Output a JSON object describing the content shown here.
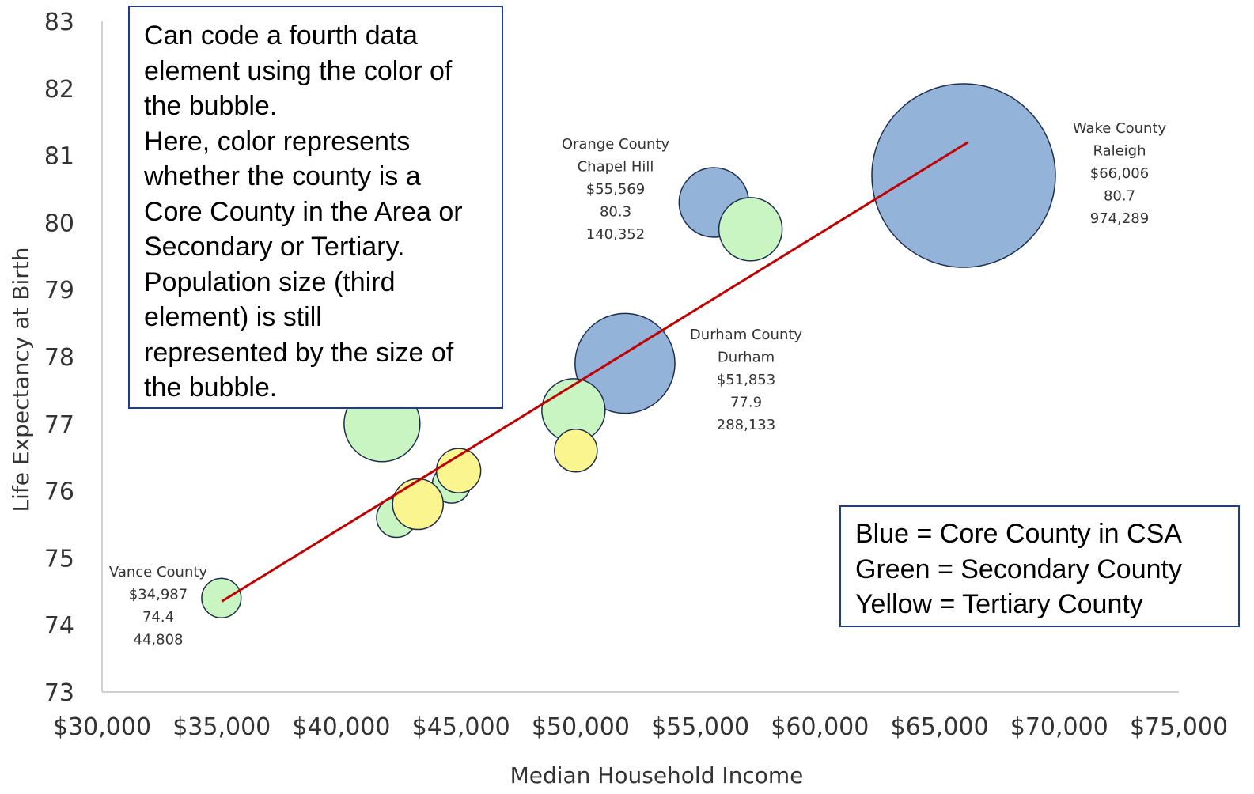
{
  "chart_data": {
    "type": "scatter",
    "subtype": "bubble",
    "xlabel": "Median Household Income",
    "ylabel": "Life Expectancy at Birth",
    "xlim": [
      30000,
      75000
    ],
    "ylim": [
      73,
      83
    ],
    "x_ticks": [
      "$30,000",
      "$35,000",
      "$40,000",
      "$45,000",
      "$50,000",
      "$55,000",
      "$60,000",
      "$65,000",
      "$70,000",
      "$75,000"
    ],
    "y_ticks": [
      "73",
      "74",
      "75",
      "76",
      "77",
      "78",
      "79",
      "80",
      "81",
      "82",
      "83"
    ],
    "grid": false,
    "colors": {
      "core": "#94b3d9",
      "secondary": "#c9f5c3",
      "tertiary": "#fbf58f",
      "trendline": "#c00000",
      "bubble_stroke": "#1f2d4d"
    },
    "points": [
      {
        "x": 66006,
        "y": 80.7,
        "population": 974289,
        "category": "core",
        "label": [
          "Wake County",
          "Raleigh",
          "$66,006",
          "80.7",
          "974,289"
        ]
      },
      {
        "x": 55569,
        "y": 80.3,
        "population": 140352,
        "category": "core",
        "label": [
          "Orange County",
          "Chapel Hill",
          "$55,569",
          "80.3",
          "140,352"
        ]
      },
      {
        "x": 51853,
        "y": 77.9,
        "population": 288133,
        "category": "core",
        "label": [
          "Durham County",
          "Durham",
          "$51,853",
          "77.9",
          "288,133"
        ]
      },
      {
        "x": 34987,
        "y": 74.4,
        "population": 44808,
        "category": "secondary",
        "label": [
          "Vance County",
          "$34,987",
          "74.4",
          "44,808"
        ]
      },
      {
        "x": 57100,
        "y": 79.9,
        "category": "secondary"
      },
      {
        "x": 49700,
        "y": 77.2,
        "category": "secondary"
      },
      {
        "x": 41700,
        "y": 77.0,
        "category": "secondary"
      },
      {
        "x": 44600,
        "y": 76.1,
        "category": "secondary"
      },
      {
        "x": 42300,
        "y": 75.6,
        "category": "secondary"
      },
      {
        "x": 43200,
        "y": 75.8,
        "category": "tertiary"
      },
      {
        "x": 44900,
        "y": 76.3,
        "category": "tertiary"
      },
      {
        "x": 49800,
        "y": 76.6,
        "category": "tertiary"
      }
    ],
    "trendline": {
      "x": [
        35000,
        66200
      ],
      "y": [
        74.35,
        81.2
      ]
    }
  },
  "note": {
    "lines": [
      "Can code a fourth data",
      "element using the color of",
      "the bubble.",
      "Here, color represents",
      "whether the county is a",
      "Core County in the Area or",
      "Secondary or Tertiary.",
      "Population size (third",
      "element) is still",
      "represented by the size of",
      "the bubble."
    ]
  },
  "legend": {
    "lines": [
      "Blue = Core County in CSA",
      "Green = Secondary County",
      "Yellow = Tertiary County"
    ]
  }
}
